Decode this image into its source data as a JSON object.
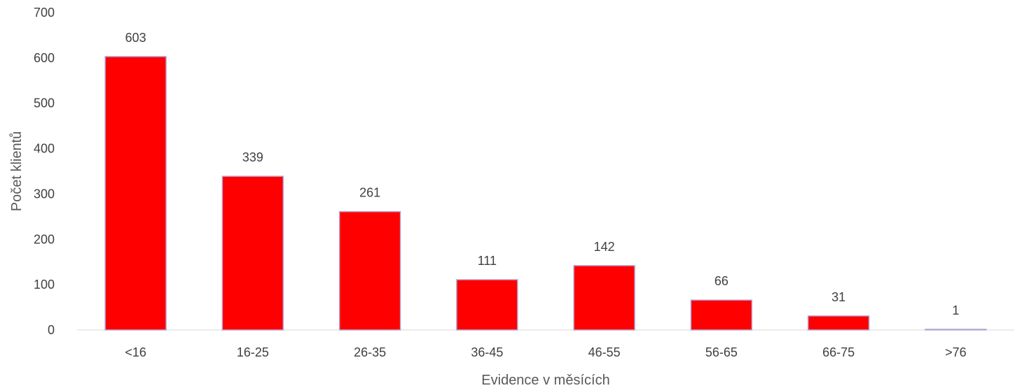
{
  "chart_data": {
    "type": "bar",
    "categories": [
      "<16",
      "16-25",
      "26-35",
      "36-45",
      "46-55",
      "56-65",
      "66-75",
      ">76"
    ],
    "values": [
      603,
      339,
      261,
      111,
      142,
      66,
      31,
      1
    ],
    "xlabel": "Evidence v měsících",
    "ylabel": "Počet klientů",
    "ylim": [
      0,
      700
    ],
    "yticks": [
      0,
      100,
      200,
      300,
      400,
      500,
      600,
      700
    ],
    "bar_color": "#ff0000",
    "bar_edge_color": "#b4a7d6",
    "grid": false,
    "legend": "none",
    "data_labels": true
  }
}
